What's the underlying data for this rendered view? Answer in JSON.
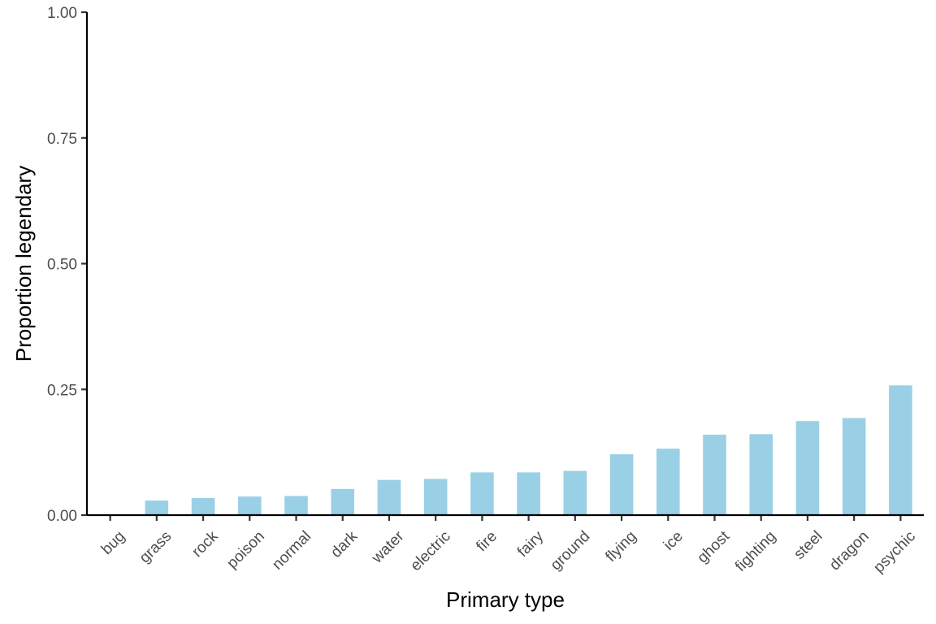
{
  "chart_data": {
    "type": "bar",
    "categories": [
      "bug",
      "grass",
      "rock",
      "poison",
      "normal",
      "dark",
      "water",
      "electric",
      "fire",
      "fairy",
      "ground",
      "flying",
      "ice",
      "ghost",
      "fighting",
      "steel",
      "dragon",
      "psychic"
    ],
    "values": [
      0.0,
      0.029,
      0.034,
      0.037,
      0.038,
      0.052,
      0.07,
      0.072,
      0.085,
      0.085,
      0.088,
      0.121,
      0.132,
      0.16,
      0.161,
      0.187,
      0.193,
      0.258
    ],
    "title": "",
    "xlabel": "Primary type",
    "ylabel": "Proportion legendary",
    "ylim": [
      0,
      1
    ],
    "yticks": [
      0,
      0.25,
      0.5,
      0.75,
      1.0
    ],
    "ytick_labels": [
      "0.00",
      "0.25",
      "0.50",
      "0.75",
      "1.00"
    ],
    "bar_color": "#9ad0e5",
    "grid": false,
    "legend": "none"
  }
}
